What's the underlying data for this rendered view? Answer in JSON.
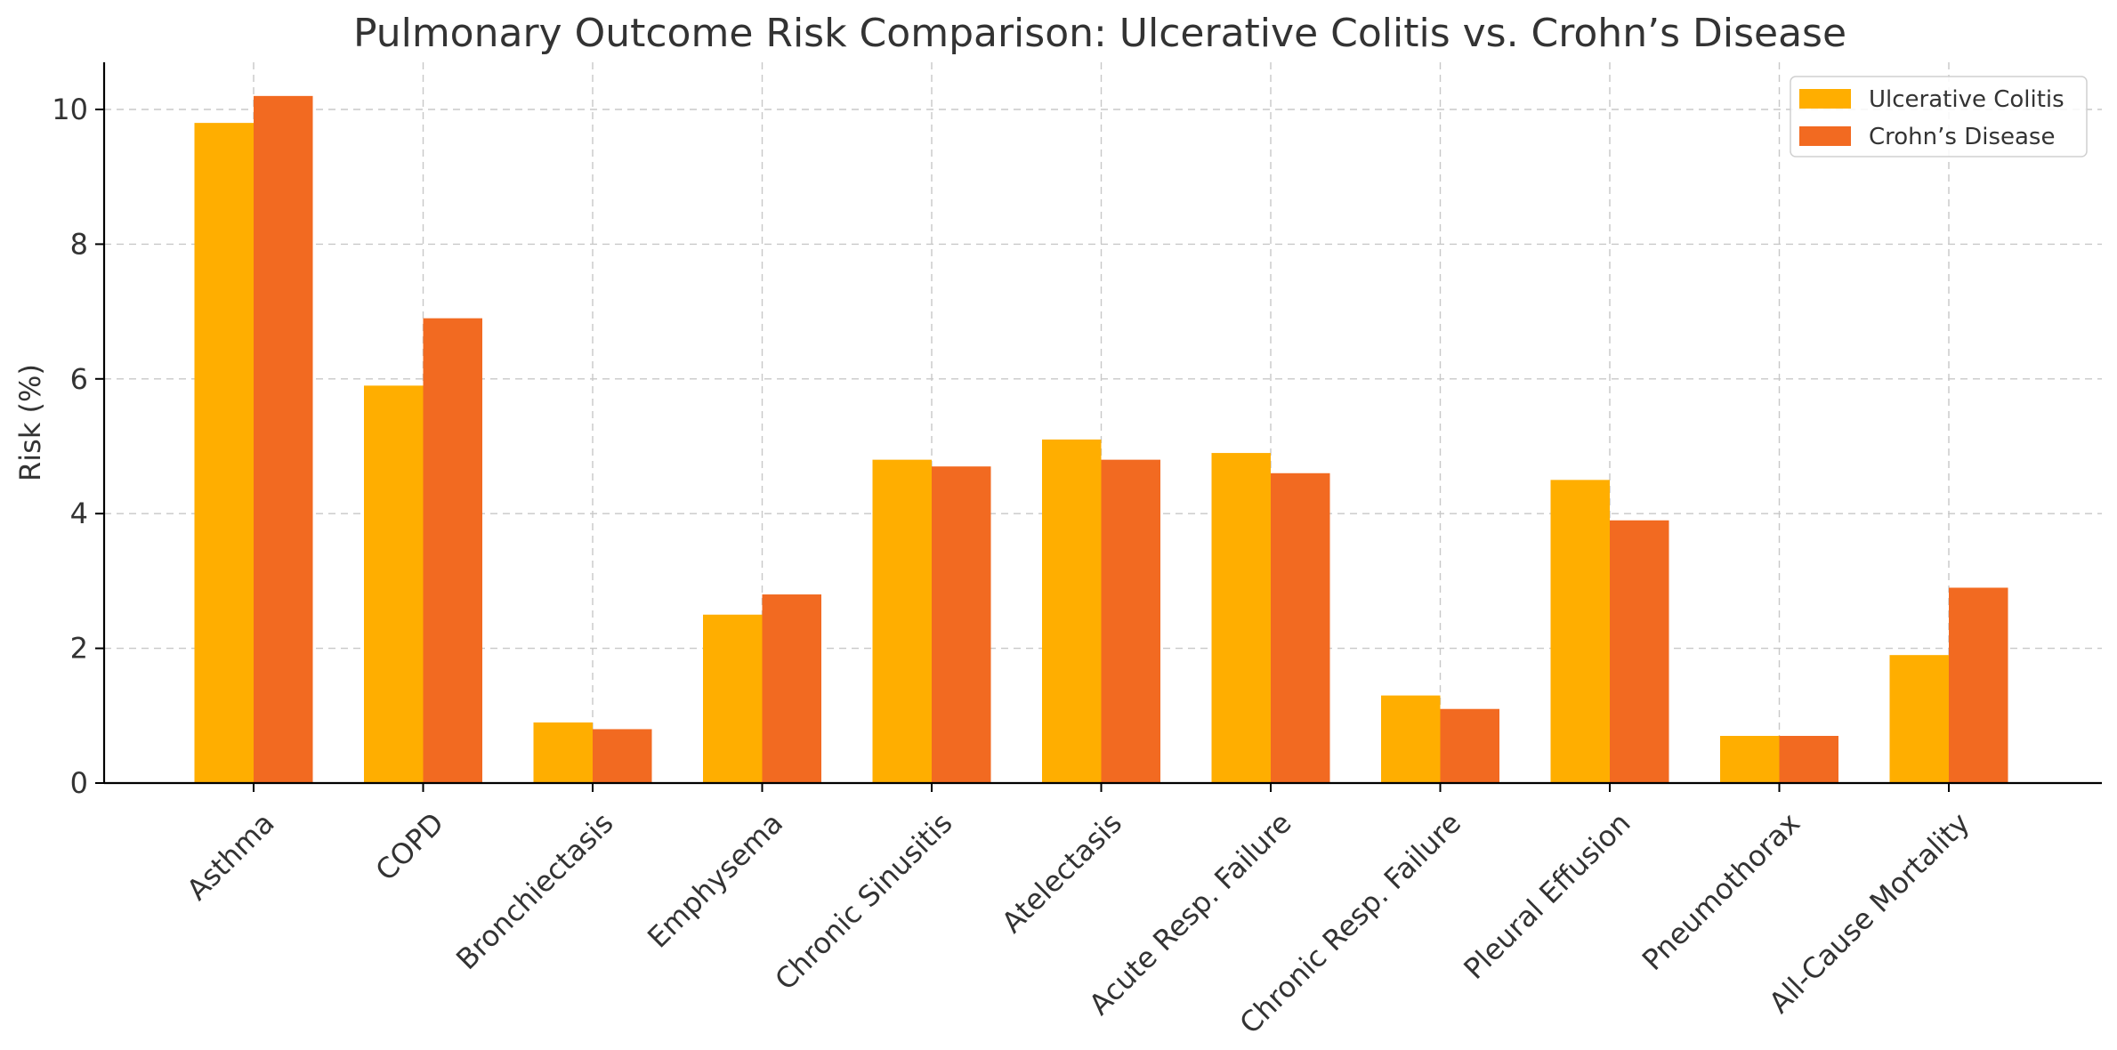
{
  "chart_data": {
    "type": "bar",
    "title": "Pulmonary Outcome Risk Comparison: Ulcerative Colitis vs. Crohn’s Disease",
    "xlabel": "",
    "ylabel": "Risk (%)",
    "categories": [
      "Asthma",
      "COPD",
      "Bronchiectasis",
      "Emphysema",
      "Chronic Sinusitis",
      "Atelectasis",
      "Acute Resp. Failure",
      "Chronic Resp. Failure",
      "Pleural Effusion",
      "Pneumothorax",
      "All-Cause Mortality"
    ],
    "series": [
      {
        "name": "Ulcerative Colitis",
        "color": "#FFAE00",
        "values": [
          9.8,
          5.9,
          0.9,
          2.5,
          4.8,
          5.1,
          4.9,
          1.3,
          4.5,
          0.7,
          1.9
        ]
      },
      {
        "name": "Crohn’s Disease",
        "color": "#F26A21",
        "values": [
          10.2,
          6.9,
          0.8,
          2.8,
          4.7,
          4.8,
          4.6,
          1.1,
          3.9,
          0.7,
          2.9
        ]
      }
    ],
    "ylim": [
      0,
      10.7
    ],
    "yticks": [
      "0",
      "2",
      "4",
      "6",
      "8",
      "10"
    ],
    "grid": true,
    "legend_position": "top-right"
  }
}
